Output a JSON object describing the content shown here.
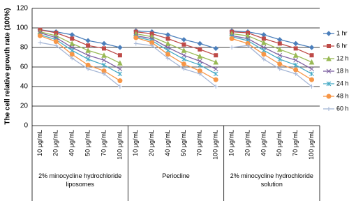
{
  "chart_data": {
    "type": "line",
    "y_label": "The cell relative growth rate (100%)",
    "categories": [
      "10 μg/mL",
      "20 μg/mL",
      "40 μg/mL",
      "50 μg/mL",
      "70 μg/mL",
      "100 μg/mL",
      "10 μg/mL",
      "20 μg/mL",
      "40 μg/mL",
      "50 μg/mL",
      "70 μg/mL",
      "100 μg/mL",
      "10 μg/mL",
      "20 μg/mL",
      "40 μg/mL",
      "50 μg/mL",
      "70 μg/mL",
      "100 μg/mL"
    ],
    "groups": [
      "2% minocycline hydrochloride liposomes",
      "Periocline",
      "2% minocycline hydrochloride solution"
    ],
    "ylim": [
      0,
      120
    ],
    "yticks": [
      0,
      20,
      40,
      60,
      80,
      100,
      120
    ],
    "grid": true,
    "series": [
      {
        "name": "1 hr",
        "color": "#4a7ebb",
        "marker": "diamond",
        "values": [
          98,
          96,
          93,
          87,
          84,
          80,
          97,
          96,
          93,
          88,
          84,
          79,
          97,
          96,
          93,
          88,
          84,
          80
        ]
      },
      {
        "name": "6 hr",
        "color": "#be4b48",
        "marker": "square",
        "values": [
          98,
          95,
          89,
          82,
          79,
          72,
          96,
          94,
          89,
          83,
          78,
          72,
          96,
          95,
          89,
          84,
          79,
          72
        ]
      },
      {
        "name": "12 hr",
        "color": "#98b954",
        "marker": "triangle",
        "values": [
          96,
          92,
          84,
          77,
          72,
          64,
          94,
          91,
          84,
          77,
          71,
          65,
          94,
          92,
          85,
          78,
          72,
          65
        ]
      },
      {
        "name": "18 hr",
        "color": "#7d60a0",
        "marker": "x",
        "values": [
          95,
          90,
          80,
          72,
          67,
          58,
          92,
          89,
          80,
          72,
          66,
          58,
          92,
          89,
          80,
          72,
          67,
          58
        ]
      },
      {
        "name": "24 hr",
        "color": "#46aac5",
        "marker": "star",
        "values": [
          93,
          88,
          77,
          68,
          62,
          53,
          91,
          87,
          77,
          68,
          62,
          53,
          91,
          87,
          77,
          68,
          62,
          53
        ]
      },
      {
        "name": "48 hr",
        "color": "#f79646",
        "marker": "circle",
        "values": [
          92,
          86,
          73,
          62,
          56,
          46,
          90,
          85,
          73,
          63,
          56,
          47,
          89,
          84,
          73,
          63,
          57,
          47
        ]
      },
      {
        "name": "60 hr",
        "color": "#a5b6d6",
        "marker": "plus",
        "values": [
          85,
          82,
          69,
          58,
          53,
          40,
          84,
          82,
          69,
          58,
          53,
          40,
          80,
          82,
          68,
          58,
          53,
          40
        ]
      }
    ]
  }
}
